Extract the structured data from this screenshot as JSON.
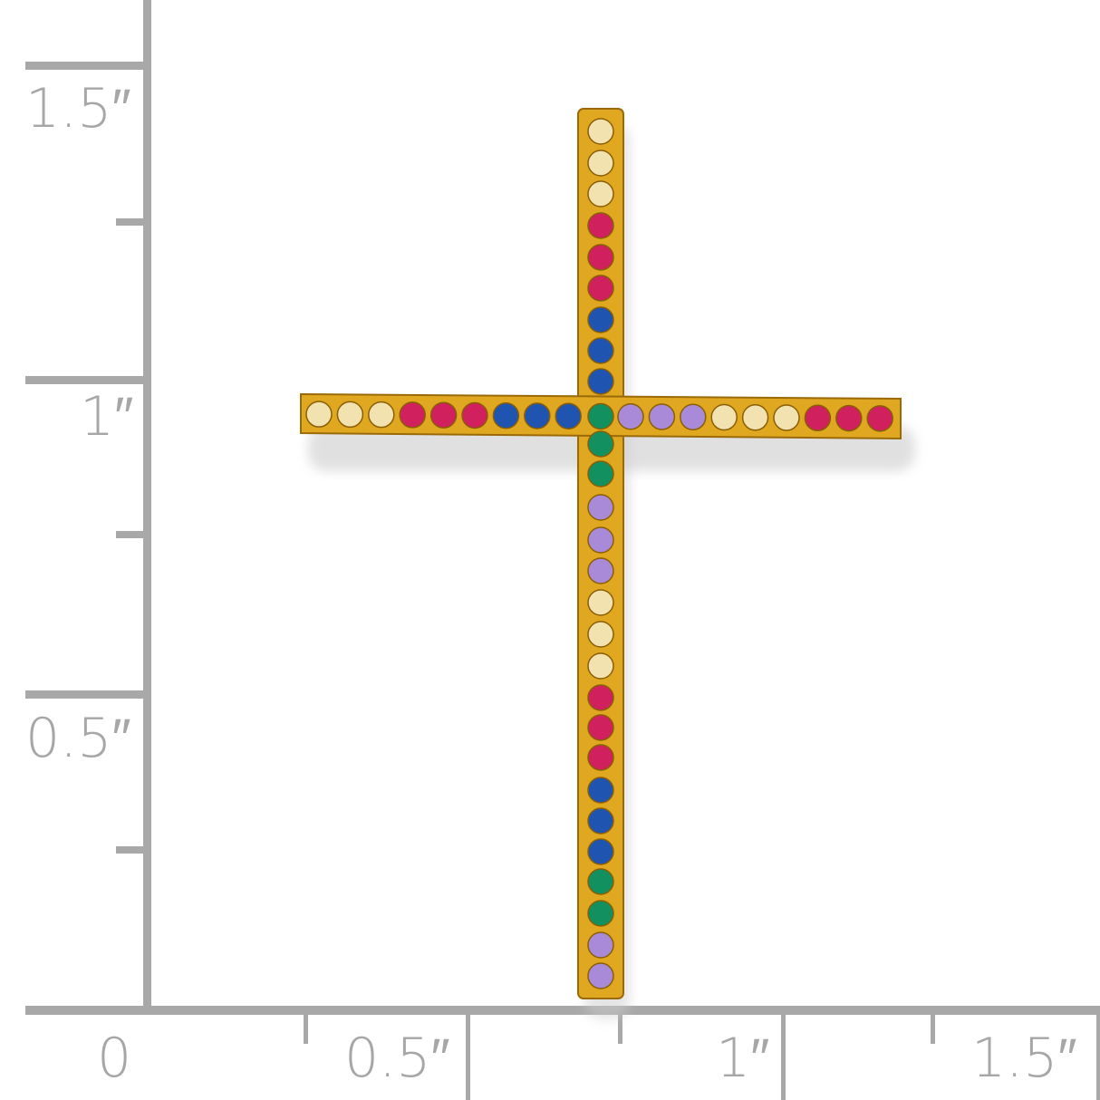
{
  "ruler": {
    "vertical_labels": [
      "1.5″",
      "1″",
      "0.5″"
    ],
    "horizontal_labels": [
      "0",
      "0.5″",
      "1″",
      "1.5″"
    ],
    "color": "#a8a8a8"
  },
  "product": {
    "metal_color": "#e0a820",
    "stone_colors": {
      "champagne": "#f2e2b0",
      "pink": "#d0205e",
      "blue": "#1f55b0",
      "green": "#129060",
      "purple": "#a88ad8"
    },
    "vertical_stones_top_to_bottom": [
      "champagne",
      "champagne",
      "champagne",
      "pink",
      "pink",
      "pink",
      "blue",
      "blue",
      "blue",
      "green",
      "green",
      "green",
      "purple",
      "purple",
      "purple",
      "champagne",
      "champagne",
      "champagne",
      "pink",
      "pink",
      "pink",
      "blue",
      "blue",
      "blue",
      "green",
      "green",
      "purple",
      "purple"
    ],
    "horizontal_stones_left_to_right": [
      "champagne",
      "champagne",
      "champagne",
      "pink",
      "pink",
      "pink",
      "blue",
      "blue",
      "blue",
      "green",
      "purple",
      "purple",
      "purple",
      "champagne",
      "champagne",
      "champagne",
      "pink",
      "pink",
      "pink"
    ]
  }
}
